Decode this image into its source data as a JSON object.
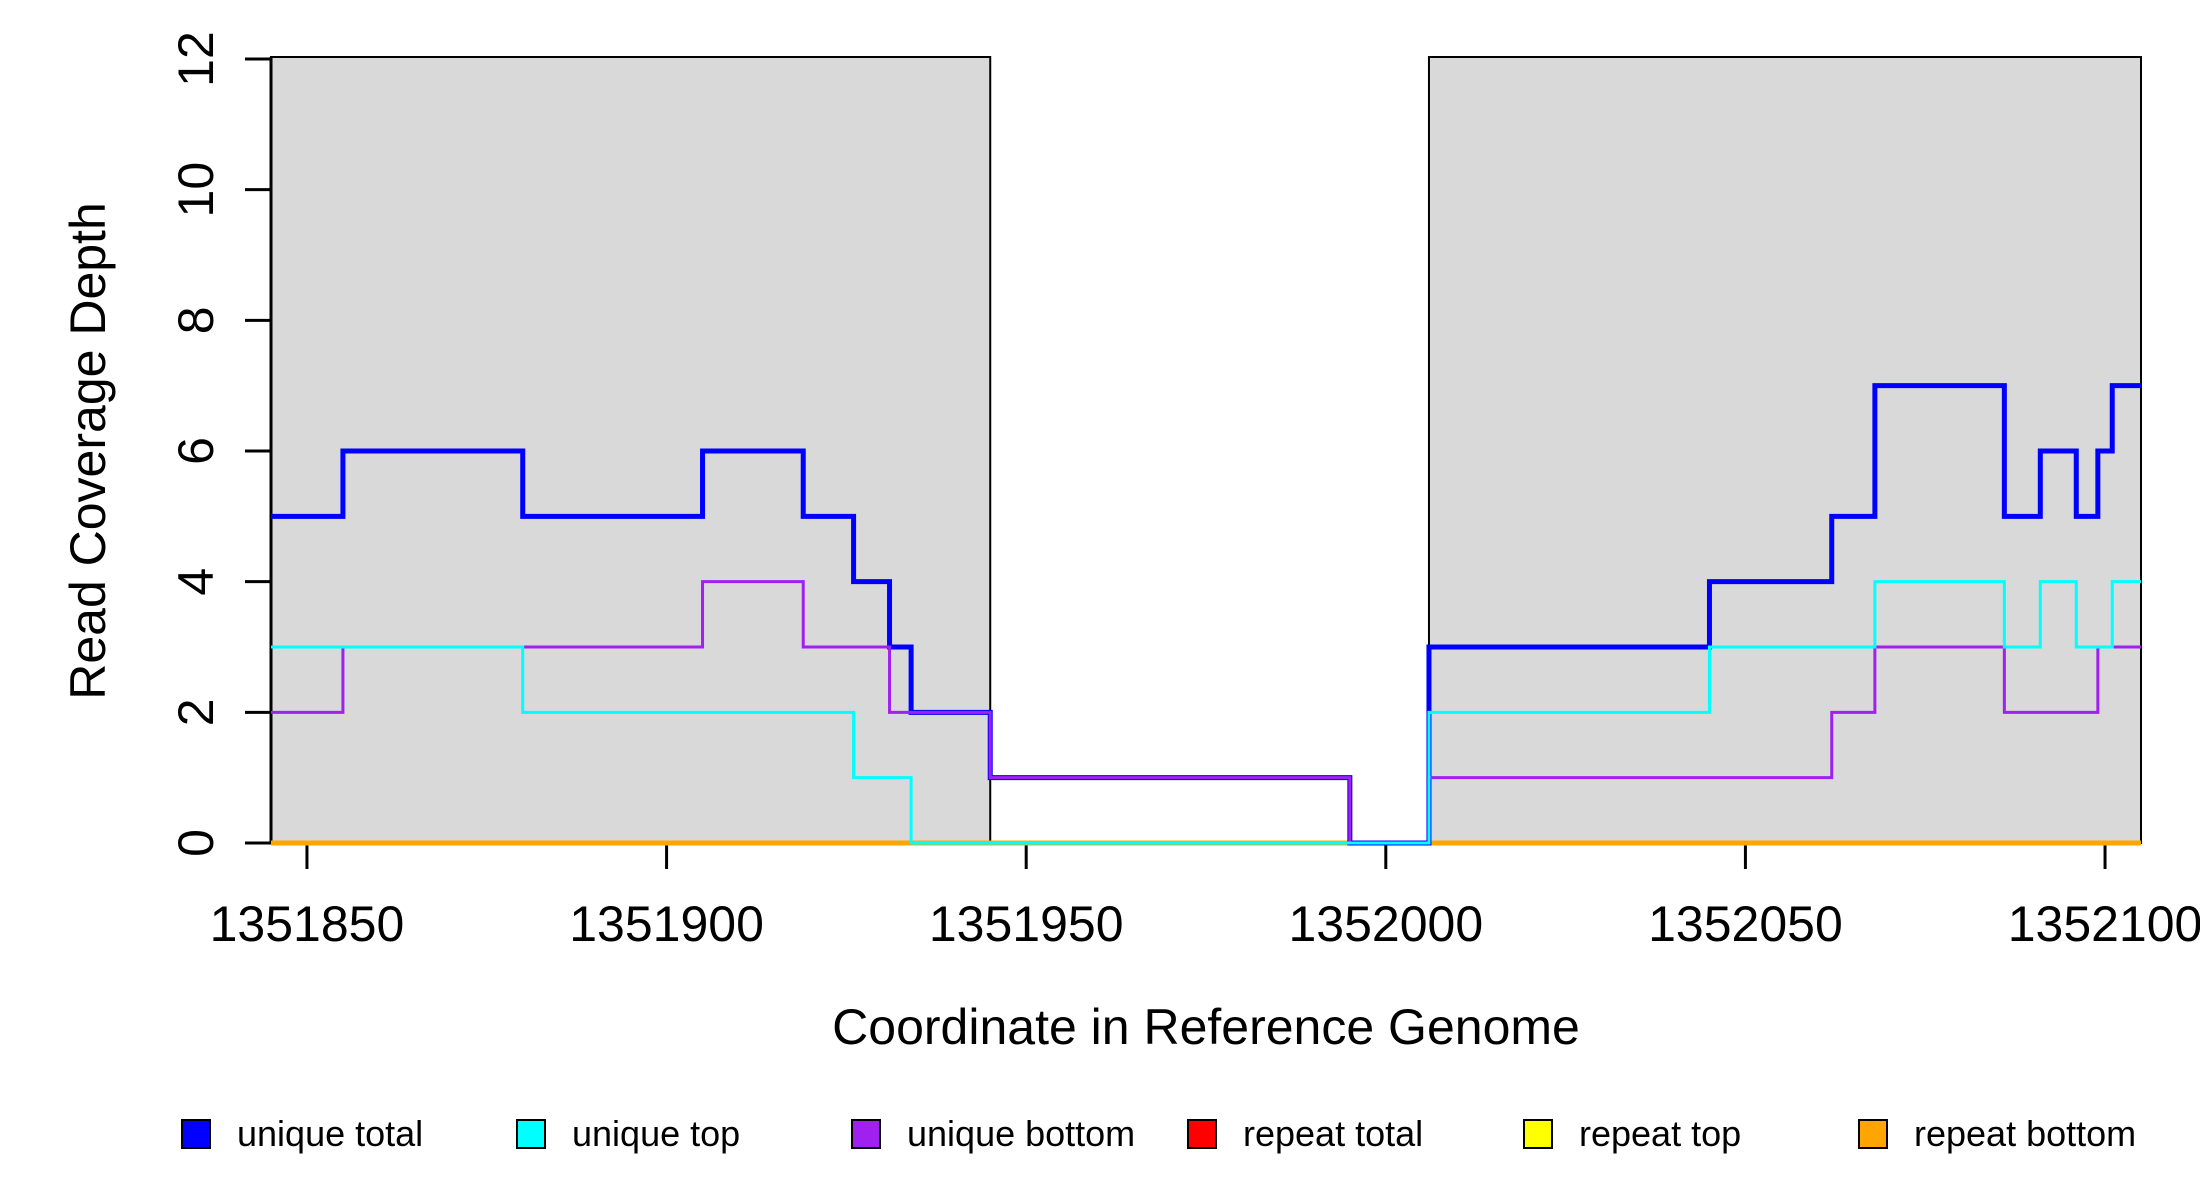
{
  "chart_data": {
    "type": "line",
    "subtype": "step",
    "title": "",
    "xlabel": "Coordinate in Reference Genome",
    "ylabel": "Read Coverage Depth",
    "xlim": [
      1351845,
      1352105
    ],
    "ylim": [
      0,
      12
    ],
    "x_ticks": [
      1351850,
      1351900,
      1351950,
      1352000,
      1352050,
      1352100
    ],
    "y_ticks": [
      0,
      2,
      4,
      6,
      8,
      10,
      12
    ],
    "grid": false,
    "shaded_regions": [
      {
        "x0": 1351845,
        "x1": 1351945,
        "fill": "#D9D9D9",
        "border": "#000000"
      },
      {
        "x0": 1352006,
        "x1": 1352105,
        "fill": "#D9D9D9",
        "border": "#000000"
      }
    ],
    "series": [
      {
        "name": "repeat total",
        "color": "#FF0000",
        "width": 3,
        "points": [
          [
            1351845,
            0
          ]
        ]
      },
      {
        "name": "repeat top",
        "color": "#FFFF00",
        "width": 3,
        "points": [
          [
            1351845,
            0
          ]
        ]
      },
      {
        "name": "repeat bottom",
        "color": "#FFA500",
        "width": 5,
        "points": [
          [
            1351845,
            0
          ]
        ]
      },
      {
        "name": "unique total",
        "color": "#0000FF",
        "width": 5,
        "points": [
          [
            1351845,
            5
          ],
          [
            1351855,
            6
          ],
          [
            1351880,
            5
          ],
          [
            1351905,
            6
          ],
          [
            1351919,
            5
          ],
          [
            1351926,
            4
          ],
          [
            1351931,
            3
          ],
          [
            1351934,
            2
          ],
          [
            1351945,
            1
          ],
          [
            1351995,
            0
          ],
          [
            1352006,
            3
          ],
          [
            1352045,
            4
          ],
          [
            1352062,
            5
          ],
          [
            1352068,
            7
          ],
          [
            1352086,
            5
          ],
          [
            1352091,
            6
          ],
          [
            1352096,
            5
          ],
          [
            1352099,
            6
          ],
          [
            1352101,
            7
          ]
        ]
      },
      {
        "name": "unique bottom",
        "color": "#A020F0",
        "width": 3,
        "points": [
          [
            1351845,
            2
          ],
          [
            1351855,
            3
          ],
          [
            1351905,
            4
          ],
          [
            1351919,
            3
          ],
          [
            1351931,
            2
          ],
          [
            1351945,
            1
          ],
          [
            1351995,
            0
          ],
          [
            1352006,
            1
          ],
          [
            1352062,
            2
          ],
          [
            1352068,
            3
          ],
          [
            1352086,
            2
          ],
          [
            1352099,
            3
          ]
        ]
      },
      {
        "name": "unique top",
        "color": "#00FFFF",
        "width": 3,
        "points": [
          [
            1351845,
            3
          ],
          [
            1351880,
            2
          ],
          [
            1351926,
            1
          ],
          [
            1351934,
            0
          ],
          [
            1352006,
            2
          ],
          [
            1352045,
            3
          ],
          [
            1352068,
            4
          ],
          [
            1352086,
            3
          ],
          [
            1352091,
            4
          ],
          [
            1352096,
            3
          ],
          [
            1352101,
            4
          ]
        ]
      }
    ],
    "legend_position": "bottom"
  },
  "labels": {
    "xlabel": "Coordinate in Reference Genome",
    "ylabel": "Read Coverage Depth"
  },
  "legend": {
    "items": [
      {
        "label": "unique total",
        "color": "#0000FF"
      },
      {
        "label": "unique top",
        "color": "#00FFFF"
      },
      {
        "label": "unique bottom",
        "color": "#A020F0"
      },
      {
        "label": "repeat total",
        "color": "#FF0000"
      },
      {
        "label": "repeat top",
        "color": "#FFFF00"
      },
      {
        "label": "repeat bottom",
        "color": "#FFA500"
      }
    ]
  }
}
